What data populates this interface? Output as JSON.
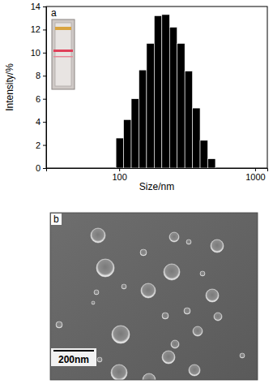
{
  "chart_data": {
    "type": "histogram",
    "panel_label": "a",
    "x_label": "Size/nm",
    "y_label": "Intensity/%",
    "bins": [
      94.6,
      107.7,
      122.6,
      139.6,
      158.9,
      180.9,
      205.9,
      234.5,
      266.9,
      303.9,
      345.9,
      393.8,
      448.3,
      510.5
    ],
    "counts": [
      2.6,
      4.2,
      6.0,
      8.5,
      10.8,
      13.2,
      13.3,
      12.2,
      10.8,
      8.4,
      5.2,
      2.4,
      0.8
    ],
    "color": "#000000",
    "log": "x",
    "xlim": [
      29,
      1230
    ],
    "xticks": [
      100,
      1000
    ],
    "ylim": [
      0,
      14
    ],
    "yticks": [
      0,
      2,
      4,
      6,
      8,
      10,
      12,
      14
    ]
  },
  "image": {
    "panel_label": "b",
    "scale_bar": "200nm"
  }
}
